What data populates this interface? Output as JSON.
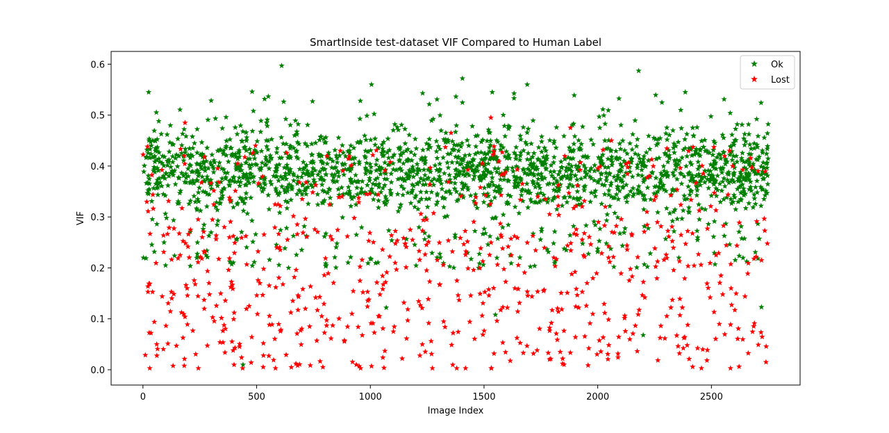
{
  "chart_data": {
    "type": "scatter",
    "title": "SmartInside test-dataset VIF Compared to Human Label",
    "xlabel": "Image Index",
    "ylabel": "VIF",
    "xlim": [
      -140,
      2890
    ],
    "ylim": [
      -0.03,
      0.625
    ],
    "xticks": [
      0,
      500,
      1000,
      1500,
      2000,
      2500
    ],
    "xtick_labels": [
      "0",
      "500",
      "1000",
      "1500",
      "2000",
      "2500"
    ],
    "yticks": [
      0.0,
      0.1,
      0.2,
      0.3,
      0.4,
      0.5,
      0.6
    ],
    "ytick_labels": [
      "0.0",
      "0.1",
      "0.2",
      "0.3",
      "0.4",
      "0.5",
      "0.6"
    ],
    "grid": false,
    "legend": {
      "position": "top-right",
      "entries": [
        "Ok",
        "Lost"
      ]
    },
    "marker": "star",
    "n_points": 2750,
    "series": [
      {
        "name": "Ok",
        "color": "#008000",
        "approx_count": 2050,
        "y_range": [
          0.01,
          0.597
        ],
        "y_mostly_between": [
          0.25,
          0.5
        ],
        "notable_points": [
          {
            "x": 610,
            "y": 0.597
          },
          {
            "x": 2180,
            "y": 0.587
          },
          {
            "x": 1405,
            "y": 0.572
          },
          {
            "x": 1005,
            "y": 0.56
          },
          {
            "x": 1690,
            "y": 0.56
          },
          {
            "x": 25,
            "y": 0.545
          },
          {
            "x": 480,
            "y": 0.546
          },
          {
            "x": 2385,
            "y": 0.545
          },
          {
            "x": 1230,
            "y": 0.543
          },
          {
            "x": 440,
            "y": 0.01
          },
          {
            "x": 1070,
            "y": 0.122
          },
          {
            "x": 2720,
            "y": 0.123
          },
          {
            "x": 2200,
            "y": 0.068
          },
          {
            "x": 1550,
            "y": 0.108
          }
        ]
      },
      {
        "name": "Lost",
        "color": "#ff0000",
        "approx_count": 700,
        "y_range": [
          0.0,
          0.495
        ],
        "y_mostly_between": [
          0.0,
          0.3
        ],
        "notable_points": [
          {
            "x": 1530,
            "y": 0.495
          },
          {
            "x": 185,
            "y": 0.485
          },
          {
            "x": 1880,
            "y": 0.475
          },
          {
            "x": 1355,
            "y": 0.465
          },
          {
            "x": 2060,
            "y": 0.45
          },
          {
            "x": 495,
            "y": 0.44
          },
          {
            "x": 20,
            "y": 0.438
          },
          {
            "x": 1380,
            "y": 0.003
          },
          {
            "x": 1140,
            "y": 0.022
          },
          {
            "x": 2740,
            "y": 0.015
          }
        ]
      }
    ]
  }
}
